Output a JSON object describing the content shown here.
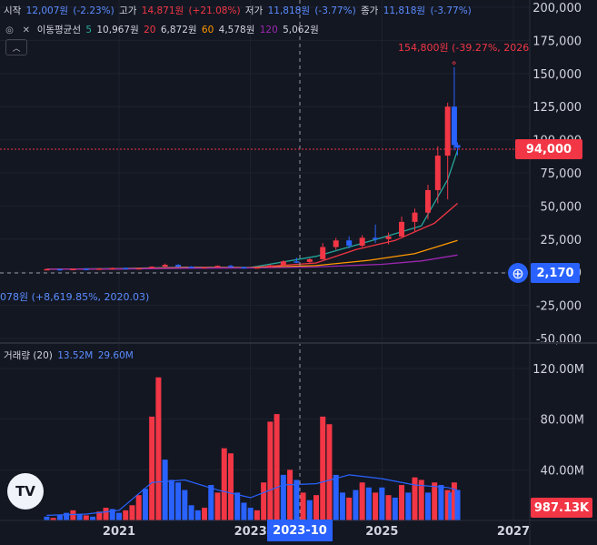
{
  "header": {
    "open_label": "시작",
    "open_value": "12,007원",
    "open_change": "(-2.23%)",
    "high_label": "고가",
    "high_value": "14,871원",
    "high_change": "(+21.08%)",
    "low_label": "저가",
    "low_value": "11,818원",
    "low_change": "(-3.77%)",
    "close_label": "종가",
    "close_value": "11,818원",
    "close_change": "(-3.77%)"
  },
  "ma_legend": {
    "title": "이동평균선",
    "p1": "5",
    "v1": "10,967원",
    "p2": "20",
    "v2": "6,872원",
    "p3": "60",
    "v3": "4,578원",
    "p4": "120",
    "v4": "5,062원"
  },
  "volume_legend": {
    "title": "거래량 (20)",
    "v1": "13.52M",
    "v2": "29.60M"
  },
  "annotations": {
    "high": "154,800원 (-39.27%, 2026.0",
    "low": "078원 (+8,619.85%, 2020.03)"
  },
  "price_axis": [
    "200,000",
    "175,000",
    "150,000",
    "125,000",
    "100,000",
    "75,000",
    "50,000",
    "25,000",
    "0",
    "-25,000",
    "-50,000"
  ],
  "volume_axis": [
    "120.00M",
    "80.00M",
    "40.00M"
  ],
  "time_axis": [
    "2021",
    "2023",
    "2025",
    "2027"
  ],
  "tags": {
    "current_price": "94,000",
    "last_value": "2,170",
    "volume_value": "987.13K",
    "crosshair_date": "2023-10"
  },
  "logo": "TV",
  "colors": {
    "up": "#f23645",
    "down": "#2962ff",
    "ma5": "#26a69a",
    "ma20": "#f23645",
    "ma60": "#ff9800",
    "ma120": "#9c27b0",
    "bg": "#131722"
  },
  "chart_data": {
    "type": "candlestick",
    "price_range": [
      -50000,
      200000
    ],
    "current_price": 94000,
    "candles": [
      {
        "t": 2019.9,
        "o": 2000,
        "h": 2600,
        "l": 1800,
        "c": 2400
      },
      {
        "t": 2020.1,
        "o": 2400,
        "h": 2600,
        "l": 1078,
        "c": 1500
      },
      {
        "t": 2020.3,
        "o": 1500,
        "h": 2800,
        "l": 1400,
        "c": 2600
      },
      {
        "t": 2020.5,
        "o": 2600,
        "h": 3200,
        "l": 2200,
        "c": 2300
      },
      {
        "t": 2020.7,
        "o": 2300,
        "h": 3000,
        "l": 2100,
        "c": 2800
      },
      {
        "t": 2020.9,
        "o": 2800,
        "h": 3500,
        "l": 2600,
        "c": 3200
      },
      {
        "t": 2021.1,
        "o": 3200,
        "h": 3600,
        "l": 2500,
        "c": 2700
      },
      {
        "t": 2021.3,
        "o": 2700,
        "h": 3400,
        "l": 2400,
        "c": 3100
      },
      {
        "t": 2021.5,
        "o": 3100,
        "h": 4500,
        "l": 3000,
        "c": 4200
      },
      {
        "t": 2021.7,
        "o": 4200,
        "h": 6500,
        "l": 4000,
        "c": 5600
      },
      {
        "t": 2021.9,
        "o": 5600,
        "h": 6200,
        "l": 3800,
        "c": 4200
      },
      {
        "t": 2022.1,
        "o": 4200,
        "h": 4600,
        "l": 3200,
        "c": 3500
      },
      {
        "t": 2022.3,
        "o": 3500,
        "h": 4200,
        "l": 3000,
        "c": 3900
      },
      {
        "t": 2022.5,
        "o": 3900,
        "h": 5200,
        "l": 3600,
        "c": 4800
      },
      {
        "t": 2022.7,
        "o": 4800,
        "h": 5600,
        "l": 3500,
        "c": 3800
      },
      {
        "t": 2022.9,
        "o": 3800,
        "h": 4200,
        "l": 3000,
        "c": 3300
      },
      {
        "t": 2023.1,
        "o": 3300,
        "h": 4000,
        "l": 3000,
        "c": 3700
      },
      {
        "t": 2023.3,
        "o": 3700,
        "h": 5600,
        "l": 3500,
        "c": 5200
      },
      {
        "t": 2023.5,
        "o": 5200,
        "h": 9000,
        "l": 5000,
        "c": 8200
      },
      {
        "t": 2023.7,
        "o": 8200,
        "h": 11000,
        "l": 7000,
        "c": 7800
      },
      {
        "t": 2023.9,
        "o": 7800,
        "h": 10500,
        "l": 7200,
        "c": 9800
      },
      {
        "t": 2024.1,
        "o": 9800,
        "h": 22000,
        "l": 9500,
        "c": 19000
      },
      {
        "t": 2024.3,
        "o": 19000,
        "h": 26000,
        "l": 17000,
        "c": 24000
      },
      {
        "t": 2024.5,
        "o": 24000,
        "h": 27000,
        "l": 18000,
        "c": 20000
      },
      {
        "t": 2024.7,
        "o": 20000,
        "h": 28000,
        "l": 19000,
        "c": 26000
      },
      {
        "t": 2024.9,
        "o": 26000,
        "h": 36000,
        "l": 22000,
        "c": 25000
      },
      {
        "t": 2025.1,
        "o": 25000,
        "h": 30000,
        "l": 21000,
        "c": 27000
      },
      {
        "t": 2025.3,
        "o": 27000,
        "h": 42000,
        "l": 26000,
        "c": 38000
      },
      {
        "t": 2025.5,
        "o": 38000,
        "h": 48000,
        "l": 31000,
        "c": 45000
      },
      {
        "t": 2025.7,
        "o": 45000,
        "h": 66000,
        "l": 40000,
        "c": 62000
      },
      {
        "t": 2025.85,
        "o": 62000,
        "h": 95000,
        "l": 52000,
        "c": 88000
      },
      {
        "t": 2026.0,
        "o": 88000,
        "h": 128000,
        "l": 55000,
        "c": 125000
      },
      {
        "t": 2026.1,
        "o": 125000,
        "h": 154800,
        "l": 92000,
        "c": 96000
      },
      {
        "t": 2026.15,
        "o": 96000,
        "h": 98000,
        "l": 88000,
        "c": 94000
      }
    ],
    "ma": [
      {
        "name": "5",
        "color": "#26a69a",
        "points": [
          [
            2019.9,
            2200
          ],
          [
            2021,
            2800
          ],
          [
            2022,
            3800
          ],
          [
            2023,
            3600
          ],
          [
            2024,
            12000
          ],
          [
            2025,
            26000
          ],
          [
            2025.6,
            35000
          ],
          [
            2026,
            70000
          ],
          [
            2026.15,
            92000
          ]
        ]
      },
      {
        "name": "20",
        "color": "#f23645",
        "points": [
          [
            2019.9,
            2200
          ],
          [
            2021,
            2600
          ],
          [
            2022,
            3600
          ],
          [
            2023,
            3500
          ],
          [
            2024,
            7000
          ],
          [
            2024.6,
            17000
          ],
          [
            2025.2,
            24000
          ],
          [
            2025.8,
            37000
          ],
          [
            2026.15,
            52000
          ]
        ]
      },
      {
        "name": "60",
        "color": "#ff9800",
        "points": [
          [
            2019.9,
            2300
          ],
          [
            2021,
            2500
          ],
          [
            2022,
            3300
          ],
          [
            2023,
            3400
          ],
          [
            2024,
            5000
          ],
          [
            2024.8,
            9000
          ],
          [
            2025.5,
            14000
          ],
          [
            2026.15,
            24000
          ]
        ]
      },
      {
        "name": "120",
        "color": "#9c27b0",
        "points": [
          [
            2019.9,
            2300
          ],
          [
            2021,
            2400
          ],
          [
            2022,
            3000
          ],
          [
            2023,
            3200
          ],
          [
            2024,
            4000
          ],
          [
            2025,
            6000
          ],
          [
            2025.6,
            8500
          ],
          [
            2026.15,
            13000
          ]
        ]
      }
    ],
    "volume_range": [
      0,
      135
    ],
    "volumes": [
      {
        "t": 2019.9,
        "v": 3,
        "up": false
      },
      {
        "t": 2020.0,
        "v": 2,
        "up": true
      },
      {
        "t": 2020.1,
        "v": 4,
        "up": false
      },
      {
        "t": 2020.2,
        "v": 6,
        "up": false
      },
      {
        "t": 2020.3,
        "v": 8,
        "up": true
      },
      {
        "t": 2020.4,
        "v": 5,
        "up": false
      },
      {
        "t": 2020.5,
        "v": 4,
        "up": true
      },
      {
        "t": 2020.6,
        "v": 3,
        "up": false
      },
      {
        "t": 2020.7,
        "v": 7,
        "up": true
      },
      {
        "t": 2020.8,
        "v": 10,
        "up": true
      },
      {
        "t": 2020.9,
        "v": 9,
        "up": false
      },
      {
        "t": 2021.0,
        "v": 6,
        "up": false
      },
      {
        "t": 2021.1,
        "v": 8,
        "up": true
      },
      {
        "t": 2021.2,
        "v": 12,
        "up": true
      },
      {
        "t": 2021.3,
        "v": 20,
        "up": true
      },
      {
        "t": 2021.4,
        "v": 25,
        "up": false
      },
      {
        "t": 2021.5,
        "v": 82,
        "up": true
      },
      {
        "t": 2021.6,
        "v": 113,
        "up": true
      },
      {
        "t": 2021.7,
        "v": 48,
        "up": false
      },
      {
        "t": 2021.8,
        "v": 32,
        "up": false
      },
      {
        "t": 2021.9,
        "v": 30,
        "up": false
      },
      {
        "t": 2022.0,
        "v": 24,
        "up": false
      },
      {
        "t": 2022.1,
        "v": 12,
        "up": false
      },
      {
        "t": 2022.2,
        "v": 8,
        "up": false
      },
      {
        "t": 2022.3,
        "v": 10,
        "up": true
      },
      {
        "t": 2022.4,
        "v": 28,
        "up": false
      },
      {
        "t": 2022.5,
        "v": 22,
        "up": true
      },
      {
        "t": 2022.6,
        "v": 57,
        "up": true
      },
      {
        "t": 2022.7,
        "v": 53,
        "up": true
      },
      {
        "t": 2022.8,
        "v": 22,
        "up": false
      },
      {
        "t": 2022.9,
        "v": 14,
        "up": false
      },
      {
        "t": 2023.0,
        "v": 10,
        "up": false
      },
      {
        "t": 2023.1,
        "v": 8,
        "up": true
      },
      {
        "t": 2023.2,
        "v": 30,
        "up": true
      },
      {
        "t": 2023.3,
        "v": 78,
        "up": true
      },
      {
        "t": 2023.4,
        "v": 84,
        "up": true
      },
      {
        "t": 2023.5,
        "v": 36,
        "up": false
      },
      {
        "t": 2023.6,
        "v": 40,
        "up": true
      },
      {
        "t": 2023.7,
        "v": 32,
        "up": false
      },
      {
        "t": 2023.8,
        "v": 22,
        "up": true
      },
      {
        "t": 2023.9,
        "v": 16,
        "up": false
      },
      {
        "t": 2024.0,
        "v": 20,
        "up": true
      },
      {
        "t": 2024.1,
        "v": 82,
        "up": true
      },
      {
        "t": 2024.2,
        "v": 76,
        "up": true
      },
      {
        "t": 2024.3,
        "v": 36,
        "up": false
      },
      {
        "t": 2024.4,
        "v": 22,
        "up": false
      },
      {
        "t": 2024.5,
        "v": 18,
        "up": true
      },
      {
        "t": 2024.6,
        "v": 24,
        "up": false
      },
      {
        "t": 2024.7,
        "v": 30,
        "up": true
      },
      {
        "t": 2024.8,
        "v": 26,
        "up": false
      },
      {
        "t": 2024.9,
        "v": 22,
        "up": true
      },
      {
        "t": 2025.0,
        "v": 26,
        "up": false
      },
      {
        "t": 2025.1,
        "v": 20,
        "up": true
      },
      {
        "t": 2025.2,
        "v": 18,
        "up": false
      },
      {
        "t": 2025.3,
        "v": 28,
        "up": true
      },
      {
        "t": 2025.4,
        "v": 22,
        "up": false
      },
      {
        "t": 2025.5,
        "v": 34,
        "up": true
      },
      {
        "t": 2025.6,
        "v": 32,
        "up": true
      },
      {
        "t": 2025.7,
        "v": 22,
        "up": false
      },
      {
        "t": 2025.8,
        "v": 30,
        "up": true
      },
      {
        "t": 2025.9,
        "v": 28,
        "up": false
      },
      {
        "t": 2026.0,
        "v": 24,
        "up": true
      },
      {
        "t": 2026.05,
        "v": 22,
        "up": false
      },
      {
        "t": 2026.1,
        "v": 30,
        "up": true
      },
      {
        "t": 2026.15,
        "v": 24,
        "up": false
      }
    ],
    "volume_ma": [
      [
        2019.9,
        4
      ],
      [
        2020.5,
        5
      ],
      [
        2021.0,
        8
      ],
      [
        2021.5,
        30
      ],
      [
        2022.0,
        32
      ],
      [
        2022.5,
        24
      ],
      [
        2023.0,
        18
      ],
      [
        2023.5,
        28
      ],
      [
        2024.0,
        29
      ],
      [
        2024.5,
        36
      ],
      [
        2025.0,
        33
      ],
      [
        2025.5,
        28
      ],
      [
        2026.0,
        26
      ],
      [
        2026.15,
        24
      ]
    ]
  }
}
